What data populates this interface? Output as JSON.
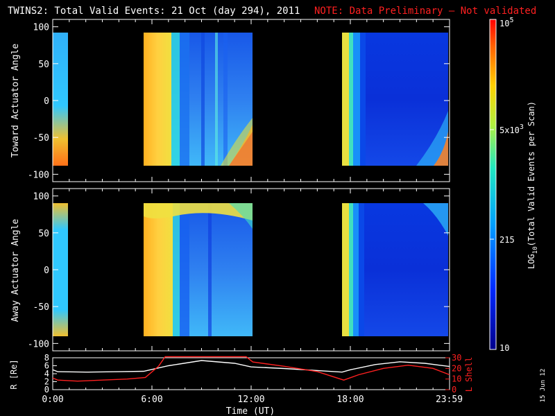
{
  "header": {
    "title": "TWINS2: Total Valid Events: 21 Oct (day 294), 2011",
    "note": "NOTE: Data Preliminary — Not validated"
  },
  "colors": {
    "background": "#000000",
    "note": "#ff2020",
    "axis": "#ffffff",
    "lshell": "#ff2020"
  },
  "side_label": "15 Jun 12",
  "chart_data": [
    {
      "type": "heatmap",
      "ylabel": "Toward Actuator Angle",
      "ylim": [
        -110,
        110
      ],
      "yticks": [
        "100",
        "50",
        "0",
        "-50",
        "-100"
      ],
      "ytick_values": [
        100,
        50,
        0,
        -50,
        -100
      ],
      "angle_range": [
        -90,
        90
      ],
      "data_intervals_ut": [
        [
          0.0,
          0.3
        ],
        [
          5.5,
          12.0
        ],
        [
          17.85,
          23.98
        ]
      ],
      "grid": false
    },
    {
      "type": "heatmap",
      "ylabel": "Away Actuator Angle",
      "ylim": [
        -110,
        110
      ],
      "yticks": [
        "100",
        "50",
        "0",
        "-50",
        "-100"
      ],
      "ytick_values": [
        100,
        50,
        0,
        -50,
        -100
      ],
      "angle_range": [
        -90,
        90
      ],
      "data_intervals_ut": [
        [
          0.0,
          0.3
        ],
        [
          5.5,
          12.0
        ],
        [
          17.85,
          23.98
        ]
      ],
      "grid": false
    },
    {
      "type": "line",
      "ylabel_left": "R [Re]",
      "ylabel_right": "L Shell",
      "left_ylim": [
        0,
        8
      ],
      "left_yticks": [
        "8",
        "6",
        "4",
        "2",
        "0"
      ],
      "left_ytick_values": [
        8,
        6,
        4,
        2,
        0
      ],
      "right_ylim": [
        0,
        30
      ],
      "right_yticks": [
        "30",
        "20",
        "10",
        "0"
      ],
      "right_ytick_values": [
        30,
        20,
        10,
        0
      ],
      "series": [
        {
          "color": "#ffffff",
          "x": [
            0,
            0.3,
            2,
            4,
            5.5,
            7,
            9,
            11,
            12,
            14,
            16,
            17.5,
            18,
            19.5,
            21,
            22.5,
            24
          ],
          "y": [
            5.0,
            4.5,
            4.4,
            4.5,
            4.6,
            6.0,
            7.3,
            6.6,
            5.7,
            5.3,
            4.8,
            4.4,
            5.0,
            6.3,
            7.0,
            6.6,
            5.8
          ]
        },
        {
          "color": "#ff2020",
          "x": [
            0,
            0.3,
            1.5,
            3,
            4.5,
            5.6,
            6.4,
            6.8,
            11.7,
            12.1,
            14,
            16,
            17.6,
            18.5,
            20,
            21.5,
            23,
            24
          ],
          "y_lshell": [
            11,
            9,
            8,
            9,
            10,
            11.5,
            22,
            31,
            31,
            26,
            22,
            17,
            9,
            14,
            20,
            23,
            20,
            14
          ]
        }
      ],
      "xlabel": "Time (UT)",
      "xticks": [
        "0:00",
        "6:00",
        "12:00",
        "18:00",
        "23:59"
      ],
      "xtick_values": [
        0,
        6,
        12,
        18,
        23.98
      ]
    }
  ],
  "colorbar": {
    "label": "LOG",
    "label_sub": "10",
    "label_rest": "(Total Valid Events per Scan)",
    "top_label": "10",
    "top_label_sup": "5",
    "mid_label": "5x10",
    "mid_label_sup": "3",
    "low_label": "215",
    "bottom_label": "10"
  }
}
